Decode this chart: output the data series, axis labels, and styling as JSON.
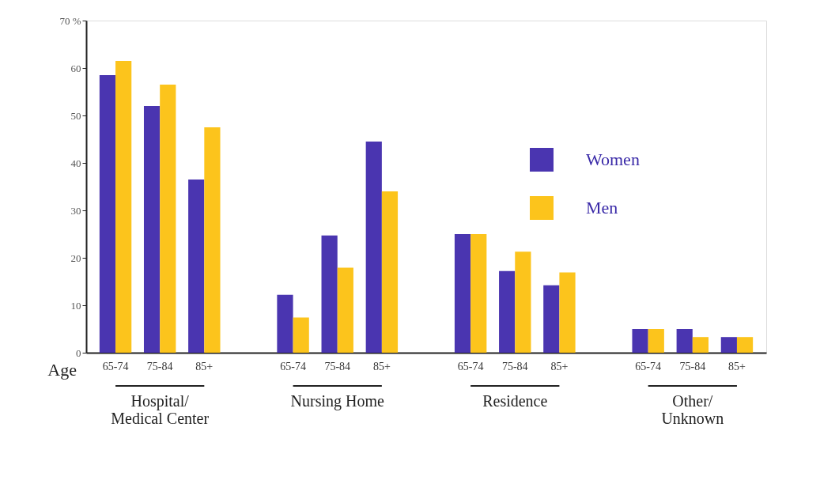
{
  "chart_data": {
    "type": "bar",
    "xlabel": "Age",
    "categories": [
      "65-74",
      "75-84",
      "85+",
      "65-74",
      "75-84",
      "85+",
      "65-74",
      "75-84",
      "85+",
      "65-74",
      "75-84",
      "85+"
    ],
    "annotations": [
      "Hospital/\nMedical Center",
      "Nursing Home",
      "Residence",
      "Other/\nUnknown"
    ],
    "series": [
      {
        "name": "Women",
        "color": "#4a35b0",
        "values": [
          58.5,
          52,
          36.5,
          12.2,
          24.7,
          44.5,
          25,
          17.2,
          14.2,
          5,
          5,
          3.3
        ]
      },
      {
        "name": "Men",
        "color": "#fcc41c",
        "values": [
          61.5,
          56.5,
          47.5,
          7.4,
          17.9,
          34,
          25,
          21.3,
          16.9,
          5,
          3.3,
          3.3
        ]
      }
    ],
    "ylim": [
      0,
      70
    ],
    "yticks": [
      0,
      10,
      20,
      30,
      40,
      50,
      60,
      {
        "value": 70,
        "label": "70 %"
      }
    ],
    "grid": false,
    "legend": "top right"
  }
}
